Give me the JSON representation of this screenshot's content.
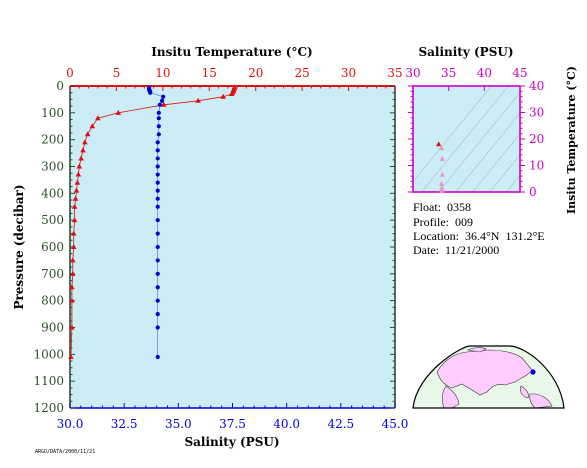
{
  "main_chart": {
    "top_axis_title": "Insitu Temperature (°C)",
    "bottom_axis_title": "Salinity (PSU)",
    "left_axis_title": "Pressure (decibar)",
    "pressure_ticks": [
      "0",
      "100",
      "200",
      "300",
      "400",
      "500",
      "600",
      "700",
      "800",
      "900",
      "1000",
      "1100",
      "1200"
    ],
    "temperature_ticks": [
      "0",
      "5",
      "10",
      "15",
      "20",
      "25",
      "30",
      "35"
    ],
    "salinity_ticks": [
      "30.0",
      "32.5",
      "35.0",
      "37.5",
      "40.0",
      "42.5",
      "45.0"
    ]
  },
  "inset_chart": {
    "top_axis_title": "Salinity (PSU)",
    "right_axis_title": "Insitu Temperature (°C)",
    "salinity_ticks": [
      "30",
      "35",
      "40",
      "45"
    ],
    "temperature_ticks": [
      "0",
      "10",
      "20",
      "30",
      "40"
    ]
  },
  "info": {
    "float_line": "Float:  0358",
    "profile_line": "Profile:  009",
    "location_line": "Location:  36.4°N  131.2°E",
    "date_line": "Date:  11/21/2000"
  },
  "stamp_text": "ARGO/DATA/2000/11/21",
  "colors": {
    "plot_background": "#ccecf6",
    "temperature": "#dd1111",
    "salinity": "#0000dd",
    "axis_green": "#2e4d2e",
    "inset_magenta": "#cc00cc",
    "map_land": "#ffccff",
    "map_ocean": "#eaf8ea"
  },
  "chart_data": [
    {
      "type": "scatter",
      "title": "",
      "ylabel": "Pressure (decibar)",
      "ylim": [
        1200,
        0
      ],
      "series": [
        {
          "name": "Insitu Temperature (°C)",
          "xlabel": "Insitu Temperature (°C)",
          "xlim": [
            0,
            35
          ],
          "x": [
            17.7,
            17.7,
            17.6,
            17.6,
            17.5,
            17.4,
            16.5,
            13.8,
            10.1,
            5.2,
            3.0,
            2.4,
            1.9,
            1.6,
            1.4,
            1.2,
            1.0,
            0.9,
            0.8,
            0.7,
            0.6,
            0.5,
            0.5,
            0.4,
            0.4,
            0.3,
            0.3,
            0.2,
            0.2,
            0.2,
            0.1
          ],
          "y": [
            5,
            10,
            15,
            20,
            25,
            30,
            40,
            55,
            70,
            100,
            120,
            150,
            180,
            210,
            240,
            270,
            300,
            330,
            360,
            390,
            420,
            450,
            500,
            550,
            600,
            650,
            700,
            750,
            800,
            900,
            1010
          ]
        },
        {
          "name": "Salinity (PSU)",
          "xlabel": "Salinity (PSU)",
          "xlim": [
            30,
            45
          ],
          "x": [
            33.65,
            33.65,
            33.65,
            33.7,
            33.7,
            34.3,
            34.25,
            34.15,
            34.1,
            34.1,
            34.1,
            34.1,
            34.05,
            34.05,
            34.05,
            34.05,
            34.05,
            34.05,
            34.05,
            34.05,
            34.05,
            34.05,
            34.05,
            34.05,
            34.05,
            34.05,
            34.05,
            34.05,
            34.05,
            34.05,
            34.05
          ],
          "y": [
            5,
            10,
            15,
            20,
            25,
            40,
            55,
            70,
            100,
            120,
            150,
            180,
            210,
            240,
            270,
            300,
            330,
            360,
            390,
            420,
            450,
            500,
            550,
            600,
            650,
            700,
            750,
            800,
            850,
            900,
            1010
          ]
        }
      ]
    },
    {
      "type": "scatter",
      "xlabel": "Salinity (PSU)",
      "ylabel": "Insitu Temperature (°C)",
      "xlim": [
        30,
        45
      ],
      "ylim": [
        0,
        40
      ],
      "series": [
        {
          "x": [
            33.6,
            34.0,
            34.1,
            34.1,
            34.0,
            34.05,
            34.05,
            34.05
          ],
          "y": [
            18.0,
            16.5,
            12.5,
            6.5,
            3.0,
            1.5,
            1.0,
            0.5
          ]
        }
      ]
    }
  ]
}
